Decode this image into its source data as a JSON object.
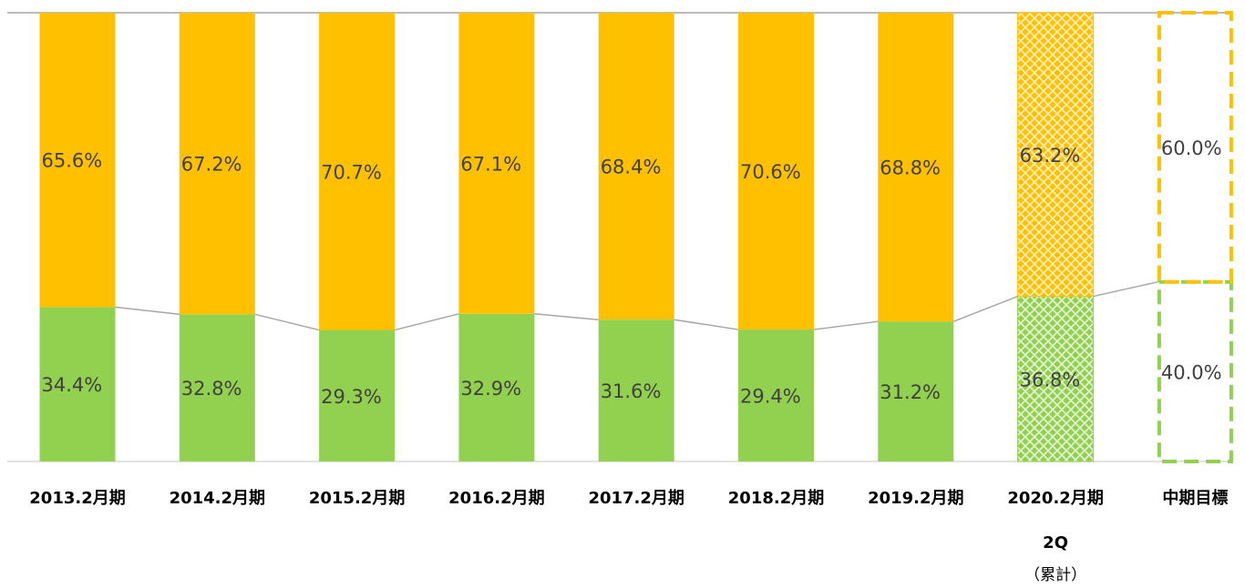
{
  "chart_data": {
    "type": "stacked_bar_100",
    "categories": [
      "2013.2月期",
      "2014.2月期",
      "2015.2月期",
      "2016.2月期",
      "2017.2月期",
      "2018.2月期",
      "2019.2月期",
      "2020.2月期",
      "中期目標"
    ],
    "category_sublabels": [
      null,
      null,
      null,
      null,
      null,
      null,
      null,
      [
        "2Q",
        "（累計）"
      ],
      null
    ],
    "series": [
      {
        "color": "#92d050",
        "values": [
          34.4,
          32.8,
          29.3,
          32.9,
          31.6,
          29.4,
          31.2,
          36.8,
          40.0
        ],
        "value_labels": [
          "34.4%",
          "32.8%",
          "29.3%",
          "32.9%",
          "31.6%",
          "29.4%",
          "31.2%",
          "36.8%",
          "40.0%"
        ]
      },
      {
        "color": "#ffc000",
        "values": [
          65.6,
          67.2,
          70.7,
          67.1,
          68.4,
          70.6,
          68.8,
          63.2,
          60.0
        ],
        "value_labels": [
          "65.6%",
          "67.2%",
          "70.7%",
          "67.1%",
          "68.4%",
          "70.6%",
          "68.8%",
          "63.2%",
          "60.0%"
        ]
      }
    ],
    "bar_styles": [
      "solid",
      "solid",
      "solid",
      "solid",
      "solid",
      "solid",
      "solid",
      "pattern",
      "dashed"
    ],
    "ylim": [
      0,
      100
    ]
  }
}
